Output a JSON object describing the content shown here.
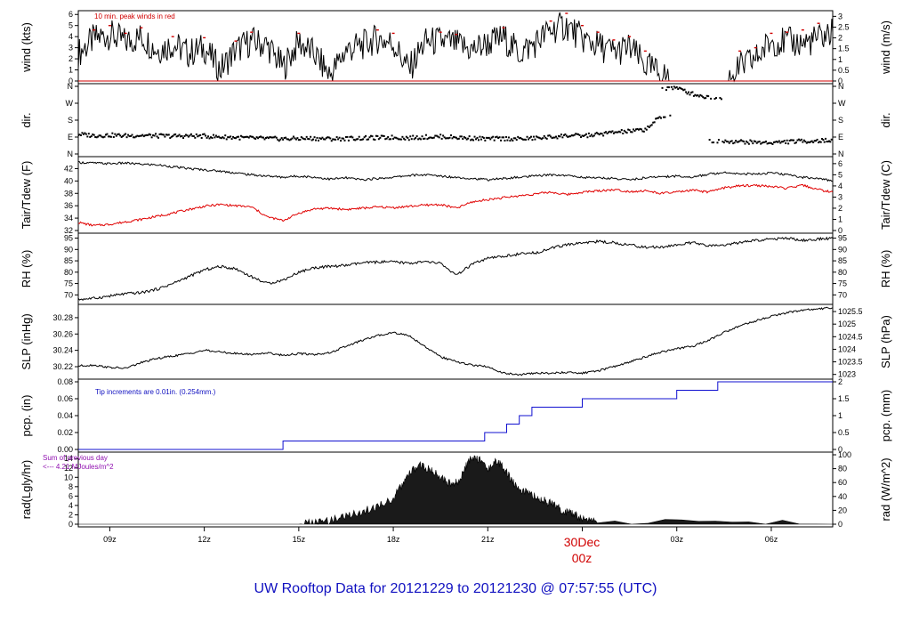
{
  "title": "UW Rooftop Data for 20121229  to  20121230 @ 07:57:55  (UTC)",
  "date_marker": {
    "day": "30Dec",
    "hour": "00z",
    "index": 5
  },
  "x_ticks": [
    "09z",
    "12z",
    "15z",
    "18z",
    "21z",
    "00z",
    "03z",
    "06z"
  ],
  "chart_data": [
    {
      "type": "line",
      "id": "wind",
      "left_label": "wind (kts)",
      "right_label": "wind (m/s)",
      "left_ticks": [
        "0",
        "1",
        "2",
        "3",
        "4",
        "5",
        "6"
      ],
      "right_ticks": [
        "0",
        "0.5",
        "1",
        "1.5",
        "2",
        "2.5",
        "3"
      ],
      "ylim": [
        0,
        6.1
      ],
      "annotation": "10 min. peak winds in red",
      "series": [
        {
          "role": "wind speed",
          "color": "#000000",
          "x": [
            8.0,
            8.5,
            9.0,
            9.5,
            10.0,
            10.5,
            11.0,
            11.5,
            12.0,
            12.5,
            13.0,
            13.5,
            14.0,
            14.5,
            15.0,
            15.5,
            16.0,
            16.5,
            17.0,
            17.5,
            18.0,
            18.5,
            19.0,
            19.5,
            20.0,
            20.5,
            21.0,
            21.5,
            22.0,
            22.5,
            23.0,
            23.5,
            24.0,
            24.5,
            25.0,
            25.5,
            26.0,
            26.5,
            27.0,
            27.5,
            28.0,
            28.5,
            29.0,
            29.5,
            30.0,
            30.5,
            31.0,
            31.5,
            31.95
          ],
          "y": [
            2.5,
            3.8,
            4.2,
            3.5,
            4.0,
            2.8,
            3.3,
            2.5,
            3.0,
            1.0,
            2.8,
            3.6,
            3.2,
            1.2,
            3.5,
            2.4,
            0.5,
            2.8,
            3.2,
            3.8,
            3.4,
            1.0,
            3.5,
            3.6,
            3.3,
            2.8,
            3.4,
            3.9,
            2.5,
            3.4,
            4.6,
            5.0,
            3.8,
            3.2,
            2.6,
            3.0,
            1.4,
            0.6,
            0.0,
            0.0,
            0.0,
            0.0,
            1.2,
            2.0,
            3.6,
            3.5,
            3.4,
            3.8,
            4.4
          ]
        },
        {
          "role": "10 min peak",
          "color": "#d00000",
          "x": [
            8.5,
            9.0,
            9.5,
            10.0,
            11.0,
            12.0,
            13.0,
            13.5,
            15.0,
            17.5,
            18.0,
            19.5,
            20.0,
            21.5,
            23.0,
            23.5,
            24.0,
            24.5,
            25.0,
            25.5,
            26.0,
            29.0,
            29.5,
            30.0,
            30.5,
            31.0,
            31.5
          ],
          "y": [
            4.6,
            5.0,
            4.3,
            4.8,
            4.0,
            3.9,
            3.6,
            4.4,
            4.3,
            4.6,
            4.3,
            4.4,
            4.2,
            4.8,
            5.4,
            6.1,
            5.0,
            4.4,
            3.7,
            4.0,
            2.7,
            2.7,
            3.0,
            4.3,
            4.4,
            4.6,
            5.2
          ]
        }
      ]
    },
    {
      "type": "scatter",
      "id": "dir",
      "left_label": "dir.",
      "right_label": "dir.",
      "left_ticks": [
        "N",
        "E",
        "S",
        "W",
        "N"
      ],
      "right_ticks": [
        "N",
        "E",
        "S",
        "W",
        "N"
      ],
      "ylim": [
        0,
        360
      ],
      "series": [
        {
          "role": "wind direction",
          "color": "#000000",
          "x": [
            8.0,
            8.5,
            9.0,
            9.5,
            10.0,
            10.5,
            11.0,
            11.5,
            12.0,
            12.5,
            13.0,
            13.5,
            14.0,
            14.5,
            15.0,
            15.5,
            16.0,
            16.5,
            17.0,
            17.5,
            18.0,
            18.5,
            19.0,
            19.5,
            20.0,
            20.5,
            21.0,
            21.5,
            22.0,
            22.5,
            23.0,
            23.5,
            24.0,
            24.5,
            25.0,
            25.5,
            26.0,
            26.5,
            27.0,
            27.5,
            28.0,
            28.5,
            29.0,
            29.5,
            30.0,
            30.5,
            31.0,
            31.5,
            31.95
          ],
          "y": [
            105,
            98,
            100,
            97,
            99,
            96,
            95,
            96,
            95,
            90,
            88,
            84,
            82,
            80,
            82,
            83,
            80,
            82,
            84,
            86,
            88,
            85,
            90,
            92,
            88,
            84,
            80,
            82,
            80,
            84,
            90,
            98,
            96,
            104,
            115,
            120,
            130,
            200,
            350,
            320,
            300,
            70,
            65,
            62,
            60,
            65,
            68,
            70,
            72
          ]
        }
      ]
    },
    {
      "type": "line",
      "id": "temp",
      "left_label": "Tair/Tdew (F)",
      "right_label": "Tair/Tdew (C)",
      "left_ticks": [
        "32",
        "34",
        "36",
        "38",
        "40",
        "42"
      ],
      "right_ticks": [
        "0",
        "1",
        "2",
        "3",
        "4",
        "5",
        "6"
      ],
      "ylim": [
        32,
        43.5
      ],
      "series": [
        {
          "role": "air temperature",
          "color": "#000000",
          "x": [
            8.0,
            8.5,
            9.0,
            9.5,
            10.0,
            10.5,
            11.0,
            11.5,
            12.0,
            12.5,
            13.0,
            13.5,
            14.0,
            14.5,
            15.0,
            15.5,
            16.0,
            16.5,
            17.0,
            17.5,
            18.0,
            18.5,
            19.0,
            19.5,
            20.0,
            20.5,
            21.0,
            21.5,
            22.0,
            22.5,
            23.0,
            23.5,
            24.0,
            24.5,
            25.0,
            25.5,
            26.0,
            26.5,
            27.0,
            27.5,
            28.0,
            28.5,
            29.0,
            29.5,
            30.0,
            30.5,
            31.0,
            31.5,
            31.95
          ],
          "y": [
            43.0,
            42.9,
            42.8,
            42.9,
            42.7,
            42.6,
            42.3,
            42.0,
            41.8,
            41.6,
            41.3,
            41.0,
            40.8,
            40.6,
            40.8,
            40.6,
            40.3,
            40.5,
            40.2,
            40.4,
            40.6,
            40.9,
            41.0,
            40.8,
            40.6,
            40.4,
            40.2,
            40.4,
            40.6,
            40.8,
            41.0,
            40.9,
            40.6,
            40.5,
            40.4,
            40.2,
            40.5,
            40.7,
            40.8,
            40.6,
            41.1,
            41.4,
            41.2,
            41.1,
            41.3,
            41.0,
            40.6,
            40.4,
            40.0
          ]
        },
        {
          "role": "dew point",
          "color": "#e00000",
          "x": [
            8.0,
            8.5,
            9.0,
            9.5,
            10.0,
            10.5,
            11.0,
            11.5,
            12.0,
            12.5,
            13.0,
            13.5,
            14.0,
            14.5,
            15.0,
            15.5,
            16.0,
            16.5,
            17.0,
            17.5,
            18.0,
            18.5,
            19.0,
            19.5,
            20.0,
            20.5,
            21.0,
            21.5,
            22.0,
            22.5,
            23.0,
            23.5,
            24.0,
            24.5,
            25.0,
            25.5,
            26.0,
            26.5,
            27.0,
            27.5,
            28.0,
            28.5,
            29.0,
            29.5,
            30.0,
            30.5,
            31.0,
            31.5,
            31.95
          ],
          "y": [
            33.3,
            32.8,
            33.0,
            33.4,
            33.8,
            34.3,
            34.8,
            35.4,
            35.9,
            36.2,
            36.0,
            35.8,
            34.2,
            33.6,
            34.8,
            35.5,
            35.6,
            35.4,
            35.6,
            35.8,
            35.7,
            35.9,
            36.1,
            36.2,
            35.6,
            36.6,
            37.0,
            37.3,
            37.6,
            37.9,
            38.2,
            37.8,
            38.2,
            38.4,
            38.6,
            38.3,
            38.4,
            38.0,
            38.2,
            38.5,
            38.2,
            38.9,
            39.2,
            39.3,
            39.1,
            38.8,
            39.3,
            38.6,
            38.2
          ]
        }
      ]
    },
    {
      "type": "line",
      "id": "rh",
      "left_label": "RH (%)",
      "right_label": "RH (%)",
      "left_ticks": [
        "70",
        "75",
        "80",
        "85",
        "90",
        "95"
      ],
      "right_ticks": [
        "70",
        "75",
        "80",
        "85",
        "90",
        "95"
      ],
      "ylim": [
        67,
        96
      ],
      "series": [
        {
          "role": "relative humidity",
          "color": "#000000",
          "x": [
            8.0,
            8.5,
            9.0,
            9.5,
            10.0,
            10.5,
            11.0,
            11.5,
            12.0,
            12.5,
            13.0,
            13.5,
            14.0,
            14.5,
            15.0,
            15.5,
            16.0,
            16.5,
            17.0,
            17.5,
            18.0,
            18.5,
            19.0,
            19.5,
            20.0,
            20.5,
            21.0,
            21.5,
            22.0,
            22.5,
            23.0,
            23.5,
            24.0,
            24.5,
            25.0,
            25.5,
            26.0,
            26.5,
            27.0,
            27.5,
            28.0,
            28.5,
            29.0,
            29.5,
            30.0,
            30.5,
            31.0,
            31.5,
            31.95
          ],
          "y": [
            68.0,
            68.5,
            69.5,
            70.5,
            71.0,
            72.5,
            75.0,
            78.0,
            81.0,
            82.5,
            81.5,
            78.0,
            75.0,
            76.5,
            80.0,
            82.0,
            82.5,
            83.0,
            84.0,
            84.5,
            84.5,
            84.0,
            84.5,
            84.0,
            78.5,
            83.5,
            86.0,
            87.0,
            88.0,
            88.5,
            90.5,
            92.0,
            93.0,
            93.5,
            93.0,
            92.0,
            91.0,
            91.0,
            92.0,
            93.0,
            91.5,
            92.0,
            93.0,
            94.0,
            94.5,
            95.0,
            94.0,
            94.5,
            95.0
          ]
        }
      ]
    },
    {
      "type": "line",
      "id": "slp",
      "left_label": "SLP (inHg)",
      "right_label": "SLP (hPa)",
      "left_ticks": [
        "30.22",
        "30.24",
        "30.26",
        "30.28"
      ],
      "right_ticks": [
        "1023",
        "1023.5",
        "1024",
        "1024.5",
        "1025",
        "1025.5"
      ],
      "ylim": [
        30.208,
        30.293
      ],
      "series": [
        {
          "role": "sea level pressure",
          "color": "#000000",
          "x": [
            8.0,
            8.5,
            9.0,
            9.5,
            10.0,
            10.5,
            11.0,
            11.5,
            12.0,
            12.5,
            13.0,
            13.5,
            14.0,
            14.5,
            15.0,
            15.5,
            16.0,
            16.5,
            17.0,
            17.5,
            18.0,
            18.5,
            19.0,
            19.5,
            20.0,
            20.5,
            21.0,
            21.5,
            22.0,
            22.5,
            23.0,
            23.5,
            24.0,
            24.5,
            25.0,
            25.5,
            26.0,
            26.5,
            27.0,
            27.5,
            28.0,
            28.5,
            29.0,
            29.5,
            30.0,
            30.5,
            31.0,
            31.5,
            31.95
          ],
          "y": [
            30.221,
            30.222,
            30.219,
            30.218,
            30.225,
            30.23,
            30.233,
            30.236,
            30.24,
            30.238,
            30.236,
            30.235,
            30.237,
            30.234,
            30.236,
            30.235,
            30.237,
            30.245,
            30.252,
            30.258,
            30.262,
            30.258,
            30.245,
            30.232,
            30.226,
            30.222,
            30.22,
            30.212,
            30.21,
            30.212,
            30.212,
            30.213,
            30.212,
            30.215,
            30.22,
            30.226,
            30.232,
            30.238,
            30.242,
            30.245,
            30.252,
            30.262,
            30.27,
            30.276,
            30.282,
            30.286,
            30.289,
            30.291,
            30.292
          ]
        }
      ]
    },
    {
      "type": "line",
      "id": "pcp",
      "left_label": "pcp. (in)",
      "right_label": "pcp. (mm)",
      "left_ticks": [
        "0.00",
        "0.02",
        "0.04",
        "0.06",
        "0.08"
      ],
      "right_ticks": [
        "0",
        "0.5",
        "1",
        "1.5",
        "2"
      ],
      "ylim": [
        0,
        0.08
      ],
      "annotation": "Tip increments are 0.01in. (0.254mm.)",
      "series": [
        {
          "role": "accumulated precipitation",
          "color": "#1010d0",
          "step": true,
          "x": [
            8.0,
            14.5,
            14.5,
            20.9,
            20.9,
            21.6,
            21.6,
            22.0,
            22.0,
            22.4,
            22.4,
            24.0,
            24.0,
            27.0,
            27.0,
            28.3,
            28.3,
            31.95
          ],
          "y": [
            0.0,
            0.0,
            0.01,
            0.01,
            0.02,
            0.02,
            0.03,
            0.03,
            0.04,
            0.04,
            0.05,
            0.05,
            0.06,
            0.06,
            0.07,
            0.07,
            0.08,
            0.08
          ]
        }
      ]
    },
    {
      "type": "area",
      "id": "rad",
      "left_label": "rad(Lgly/hr)",
      "right_label": "rad (W/m^2)",
      "left_ticks": [
        "0",
        "2",
        "4",
        "6",
        "8",
        "10",
        "12",
        "14"
      ],
      "right_ticks": [
        "0",
        "20",
        "40",
        "60",
        "80",
        "100"
      ],
      "ylim": [
        0,
        14.8
      ],
      "annotation": [
        "Sum of previous day",
        "<--- 4.21 MJoules/m^2"
      ],
      "series": [
        {
          "role": "solar radiation",
          "color": "#1a1a1a",
          "x": [
            8.0,
            15.0,
            15.5,
            16.0,
            16.5,
            17.0,
            17.5,
            18.0,
            18.3,
            18.6,
            18.9,
            19.2,
            19.5,
            19.8,
            20.1,
            20.4,
            20.7,
            21.0,
            21.3,
            21.6,
            21.9,
            22.2,
            22.5,
            22.8,
            23.1,
            23.4,
            23.7,
            24.0,
            24.5,
            31.95
          ],
          "y": [
            0,
            0,
            0.3,
            0.8,
            1.8,
            2.6,
            3.8,
            5.5,
            8.5,
            11.5,
            12.6,
            11.4,
            10.2,
            8.6,
            9.0,
            13.8,
            14.0,
            11.8,
            13.6,
            11.0,
            8.0,
            6.8,
            5.8,
            5.0,
            4.2,
            2.6,
            2.2,
            1.2,
            0.3,
            0
          ]
        }
      ]
    }
  ]
}
